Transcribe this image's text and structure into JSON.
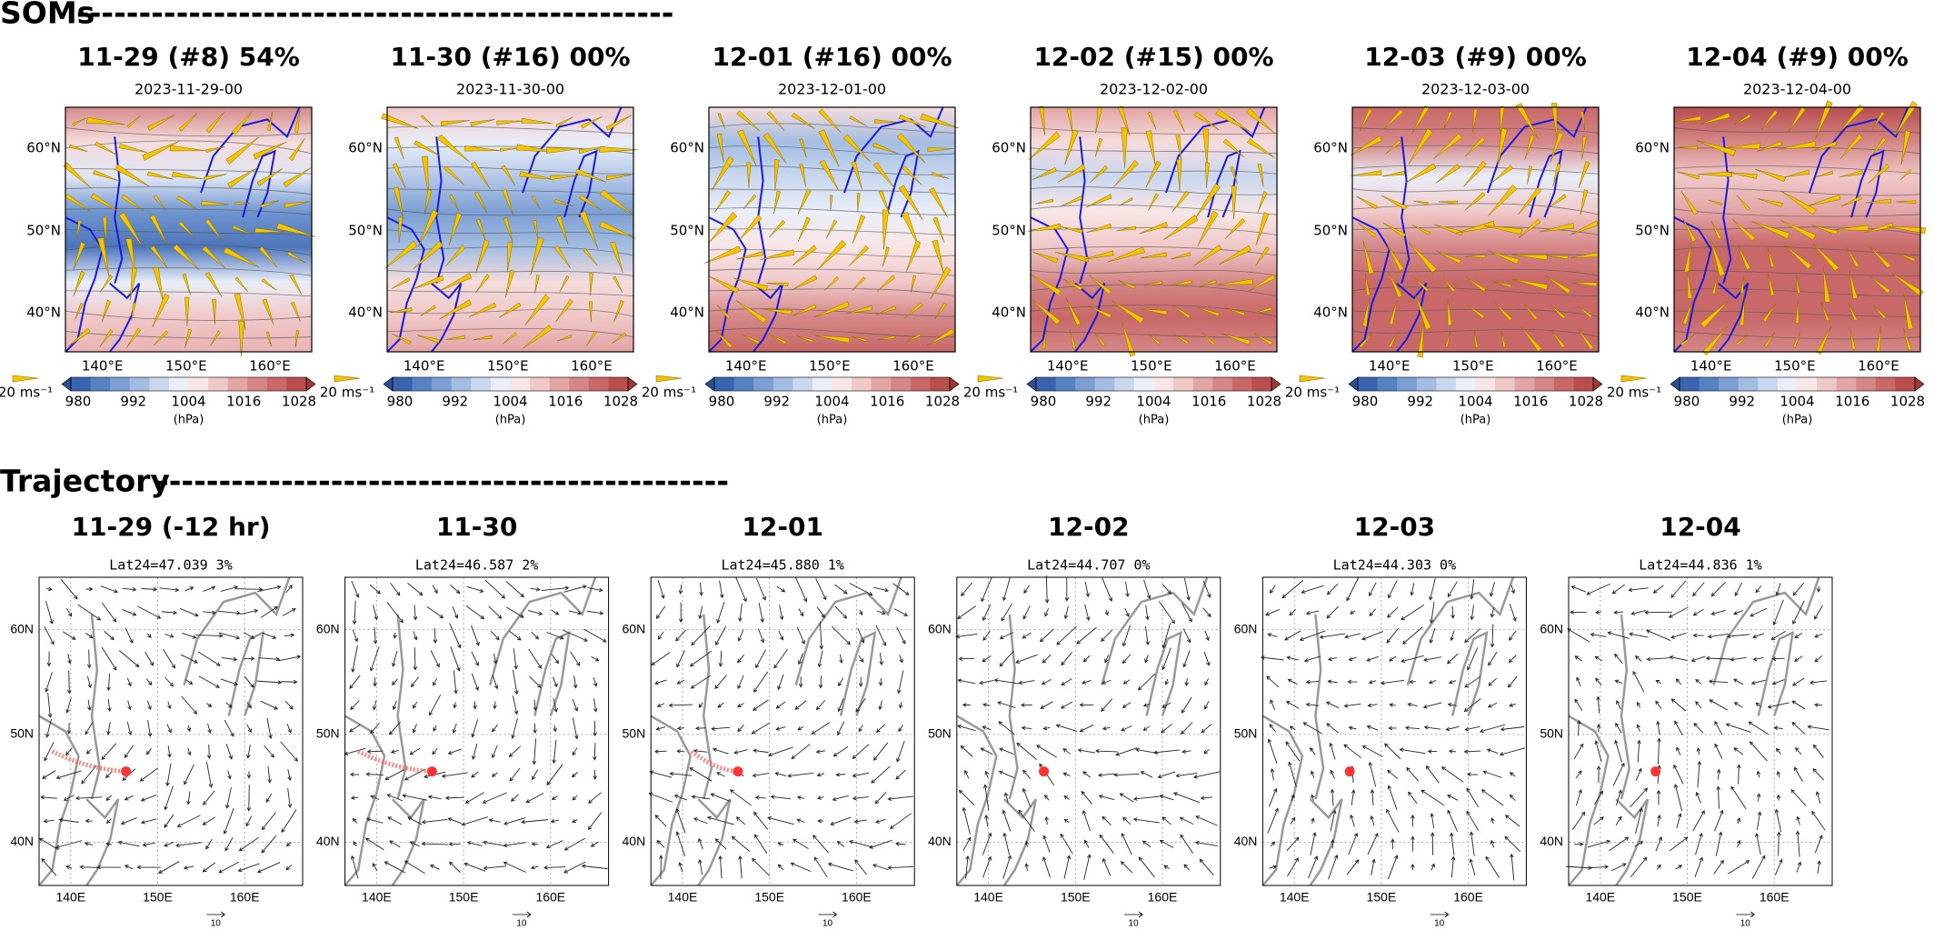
{
  "soms": {
    "heading": "SOMs",
    "dashes": "------------------------------------------------",
    "panels": [
      {
        "title": "11-29 (#8) 54%",
        "subtitle": "2023-11-29-00"
      },
      {
        "title": "11-30 (#16) 00%",
        "subtitle": "2023-11-30-00"
      },
      {
        "title": "12-01 (#16) 00%",
        "subtitle": "2023-12-01-00"
      },
      {
        "title": "12-02 (#15) 00%",
        "subtitle": "2023-12-02-00"
      },
      {
        "title": "12-03 (#9) 00%",
        "subtitle": "2023-12-03-00"
      },
      {
        "title": "12-04 (#9) 00%",
        "subtitle": "2023-12-04-00"
      }
    ],
    "lat_labels": [
      "60°N",
      "50°N",
      "40°N"
    ],
    "lon_labels": [
      "140°E",
      "150°E",
      "160°E"
    ],
    "colorbar_ticks": [
      980,
      992,
      1004,
      1016,
      1028
    ],
    "colorbar_unit": "(hPa)",
    "vector_key": "20 ms⁻¹"
  },
  "trajectory": {
    "heading": "Trajectory",
    "dashes": "----------------------------------------------",
    "panels": [
      {
        "title": "11-29 (-12 hr)",
        "subtitle": "Lat24=47.039 3%"
      },
      {
        "title": "11-30",
        "subtitle": "Lat24=46.587 2%"
      },
      {
        "title": "12-01",
        "subtitle": "Lat24=45.880 1%"
      },
      {
        "title": "12-02",
        "subtitle": "Lat24=44.707 0%"
      },
      {
        "title": "12-03",
        "subtitle": "Lat24=44.303 0%"
      },
      {
        "title": "12-04",
        "subtitle": "Lat24=44.836 1%"
      }
    ],
    "lat_labels": [
      "60N",
      "50N",
      "40N"
    ],
    "lon_labels": [
      "140E",
      "150E",
      "160E"
    ],
    "vector_key": "10"
  }
}
